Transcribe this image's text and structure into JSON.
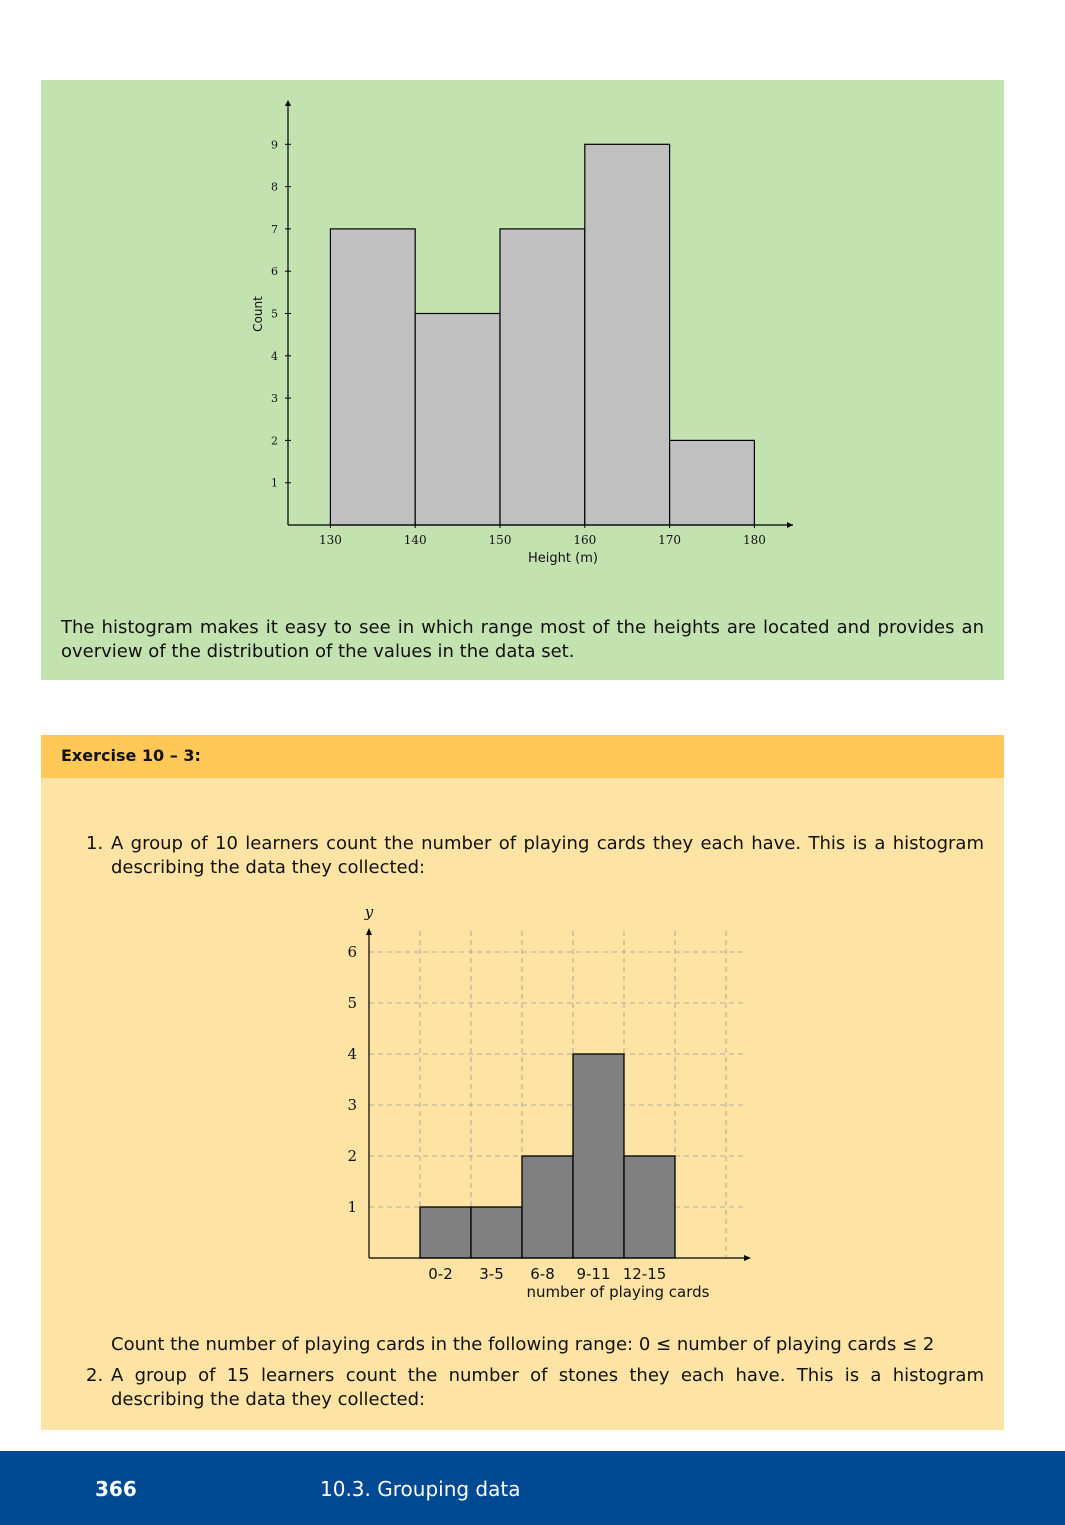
{
  "example": {
    "text": "The histogram makes it easy to see in which range most of the heights are located and provides an overview of the distribution of the values in the data set.",
    "chart": {
      "type": "bar",
      "bins": [
        {
          "from": 130,
          "to": 140,
          "count": 7
        },
        {
          "from": 140,
          "to": 150,
          "count": 5
        },
        {
          "from": 150,
          "to": 160,
          "count": 7
        },
        {
          "from": 160,
          "to": 170,
          "count": 9
        },
        {
          "from": 170,
          "to": 180,
          "count": 2
        }
      ],
      "x_ticks": [
        "130",
        "140",
        "150",
        "160",
        "170",
        "180"
      ],
      "y_ticks": [
        "1",
        "2",
        "3",
        "4",
        "5",
        "6",
        "7",
        "8",
        "9"
      ],
      "xlabel": "Height (m)",
      "ylabel": "Count",
      "xlim": [
        125,
        185
      ],
      "ylim": [
        0,
        9.9
      ],
      "bar_color": "#c0c0c0",
      "grid": false
    }
  },
  "exercise": {
    "title": "Exercise 10 – 3:",
    "questions": [
      {
        "number": "1.",
        "text": "A group of 10 learners count the number of playing cards they each have. This is a histogram describing the data they collected:",
        "chart": {
          "type": "bar",
          "categories": [
            "0-2",
            "3-5",
            "6-8",
            "9-11",
            "12-15"
          ],
          "values": [
            1,
            1,
            2,
            4,
            2
          ],
          "y_ticks": [
            "1",
            "2",
            "3",
            "4",
            "5",
            "6"
          ],
          "xlabel": "number of playing cards",
          "ylabel": "y",
          "ylim": [
            0,
            6.5
          ],
          "bar_color": "#808080",
          "grid": true
        },
        "prompt": "Count the number of playing cards in the following range: 0 ≤ number of playing cards ≤ 2"
      },
      {
        "number": "2.",
        "text": "A group of 15 learners count the number of stones they each have. This is a histogram describing the data they collected:"
      }
    ]
  },
  "footer": {
    "page_number": "366",
    "section": "10.3.   Grouping data"
  }
}
